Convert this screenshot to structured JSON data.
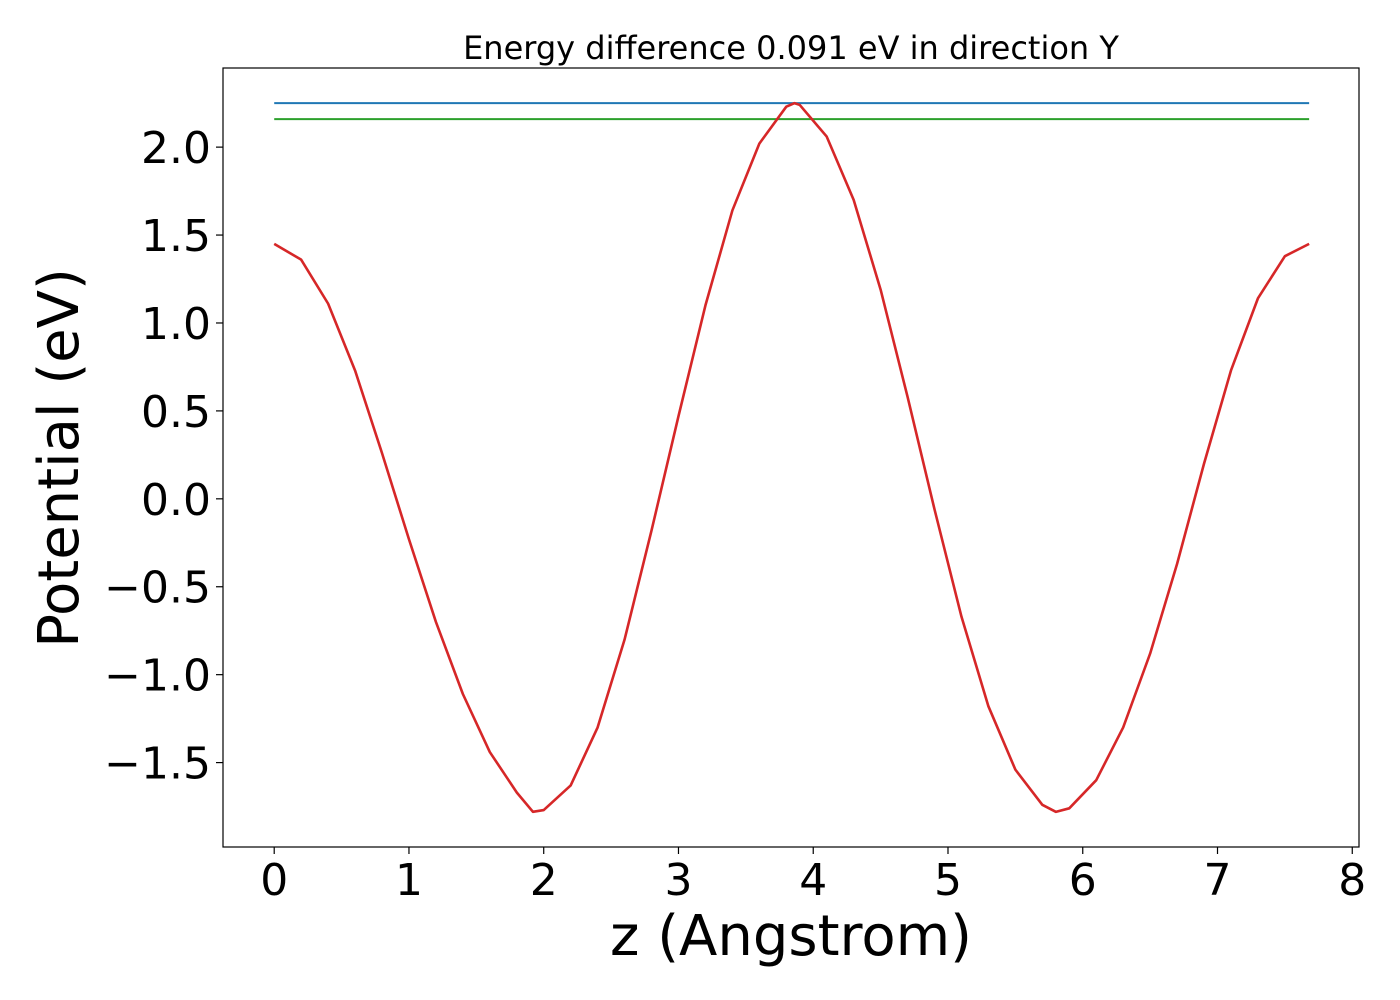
{
  "chart_data": {
    "type": "line",
    "title": "Energy difference 0.091 eV in direction Y",
    "xlabel": "z (Angstrom)",
    "ylabel": "Potential (eV)",
    "xlim": [
      -0.38,
      8.05
    ],
    "ylim": [
      -1.98,
      2.45
    ],
    "xticks": [
      0,
      1,
      2,
      3,
      4,
      5,
      6,
      7,
      8
    ],
    "xtick_labels": [
      "0",
      "1",
      "2",
      "3",
      "4",
      "5",
      "6",
      "7",
      "8"
    ],
    "yticks": [
      -1.5,
      -1.0,
      -0.5,
      0.0,
      0.5,
      1.0,
      1.5,
      2.0
    ],
    "ytick_labels": [
      "−1.5",
      "−1.0",
      "−0.5",
      "0.0",
      "0.5",
      "1.0",
      "1.5",
      "2.0"
    ],
    "grid": false,
    "series": [
      {
        "color": "#1f77b4",
        "x": [
          0.0,
          7.68
        ],
        "y": [
          2.25,
          2.25
        ]
      },
      {
        "color": "#2ca02c",
        "x": [
          0.0,
          7.68
        ],
        "y": [
          2.159,
          2.159
        ]
      },
      {
        "color": "#d62728",
        "x": [
          0.0,
          0.2,
          0.4,
          0.6,
          0.8,
          1.0,
          1.2,
          1.4,
          1.6,
          1.8,
          1.92,
          2.0,
          2.2,
          2.4,
          2.6,
          2.8,
          3.0,
          3.2,
          3.4,
          3.6,
          3.8,
          3.86,
          3.9,
          4.1,
          4.3,
          4.5,
          4.7,
          4.9,
          5.1,
          5.3,
          5.5,
          5.7,
          5.8,
          5.9,
          6.1,
          6.3,
          6.5,
          6.7,
          6.9,
          7.1,
          7.3,
          7.5,
          7.68
        ],
        "y": [
          1.45,
          1.36,
          1.11,
          0.73,
          0.26,
          -0.23,
          -0.7,
          -1.11,
          -1.44,
          -1.67,
          -1.78,
          -1.77,
          -1.63,
          -1.3,
          -0.8,
          -0.18,
          0.47,
          1.1,
          1.64,
          2.02,
          2.23,
          2.25,
          2.24,
          2.06,
          1.7,
          1.19,
          0.58,
          -0.06,
          -0.67,
          -1.18,
          -1.54,
          -1.74,
          -1.78,
          -1.76,
          -1.6,
          -1.3,
          -0.88,
          -0.37,
          0.2,
          0.73,
          1.14,
          1.38,
          1.45
        ]
      }
    ]
  }
}
